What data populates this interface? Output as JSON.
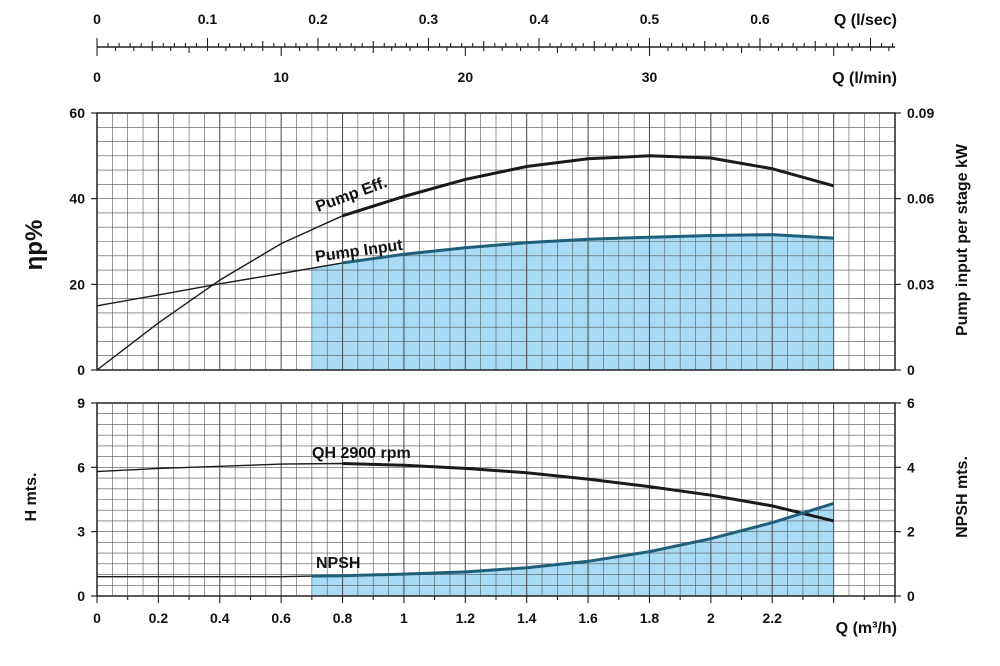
{
  "chart_data": [
    {
      "type": "line",
      "panel": "top-scales",
      "axes": [
        {
          "label": "Q (l/sec)",
          "ticks": [
            "0",
            "0.1",
            "0.2",
            "0.3",
            "0.4",
            "0.5",
            "0.6"
          ],
          "range": [
            0,
            0.7222
          ]
        },
        {
          "label": "Q (l/min)",
          "ticks": [
            "0",
            "10",
            "20",
            "30"
          ],
          "range": [
            0,
            43.33
          ]
        }
      ]
    },
    {
      "type": "line",
      "panel": "efficiency-power",
      "xlim": [
        0,
        2.6
      ],
      "y_left": {
        "label": "ηp%",
        "ticks": [
          "0",
          "20",
          "40",
          "60"
        ],
        "ylim": [
          0,
          60
        ]
      },
      "y_right": {
        "label": "Pump input per stage kW",
        "ticks": [
          "0",
          "0.03",
          "0.06",
          "0.09"
        ],
        "ylim": [
          0,
          0.09
        ]
      },
      "grid": true,
      "series": [
        {
          "name": "Pump Eff.",
          "axis": "left",
          "color": "#1a1a1a",
          "x": [
            0,
            0.2,
            0.4,
            0.6,
            0.8,
            1.0,
            1.2,
            1.4,
            1.6,
            1.8,
            2.0,
            2.2,
            2.4
          ],
          "y": [
            0,
            11,
            21,
            29.5,
            36,
            40.5,
            44.5,
            47.5,
            49.3,
            50,
            49.5,
            47,
            43
          ]
        },
        {
          "name": "Pump Input",
          "axis": "right",
          "color": "#1a1a1a",
          "fill": "#a8dcf5",
          "fill_from_x": 0.7,
          "x": [
            0,
            0.2,
            0.4,
            0.6,
            0.8,
            1.0,
            1.2,
            1.4,
            1.6,
            1.8,
            2.0,
            2.2,
            2.4
          ],
          "y": [
            0.0225,
            0.0263,
            0.0302,
            0.0338,
            0.0375,
            0.0405,
            0.0428,
            0.0446,
            0.0458,
            0.0465,
            0.0471,
            0.0474,
            0.0462
          ]
        }
      ]
    },
    {
      "type": "line",
      "panel": "head-npsh",
      "xlabel": "Q (m³/h)",
      "xticks": [
        "0",
        "0.2",
        "0.4",
        "0.6",
        "0.8",
        "1",
        "1.2",
        "1.4",
        "1.6",
        "1.8",
        "2",
        "2.2"
      ],
      "xlim": [
        0,
        2.6
      ],
      "y_left": {
        "label": "H mts.",
        "ticks": [
          "0",
          "3",
          "6",
          "9"
        ],
        "ylim": [
          0,
          9
        ]
      },
      "y_right": {
        "label": "NPSH mts.",
        "ticks": [
          "0",
          "2",
          "4",
          "6"
        ],
        "ylim": [
          0,
          6
        ]
      },
      "grid": true,
      "series": [
        {
          "name": "QH 2900 rpm",
          "axis": "left",
          "color": "#1a1a1a",
          "x": [
            0,
            0.2,
            0.4,
            0.6,
            0.8,
            1.0,
            1.2,
            1.4,
            1.6,
            1.8,
            2.0,
            2.2,
            2.4
          ],
          "y": [
            5.8,
            5.95,
            6.05,
            6.15,
            6.18,
            6.1,
            5.95,
            5.75,
            5.45,
            5.1,
            4.7,
            4.2,
            3.5
          ]
        },
        {
          "name": "NPSH",
          "axis": "right",
          "color": "#1a1a1a",
          "fill": "#a8dcf5",
          "fill_from_x": 0.7,
          "x": [
            0,
            0.2,
            0.4,
            0.6,
            0.7,
            0.8,
            1.0,
            1.2,
            1.4,
            1.6,
            1.8,
            2.0,
            2.2,
            2.4
          ],
          "y": [
            0.6,
            0.6,
            0.6,
            0.6,
            0.62,
            0.63,
            0.68,
            0.75,
            0.88,
            1.08,
            1.38,
            1.78,
            2.28,
            2.88
          ]
        }
      ]
    }
  ]
}
